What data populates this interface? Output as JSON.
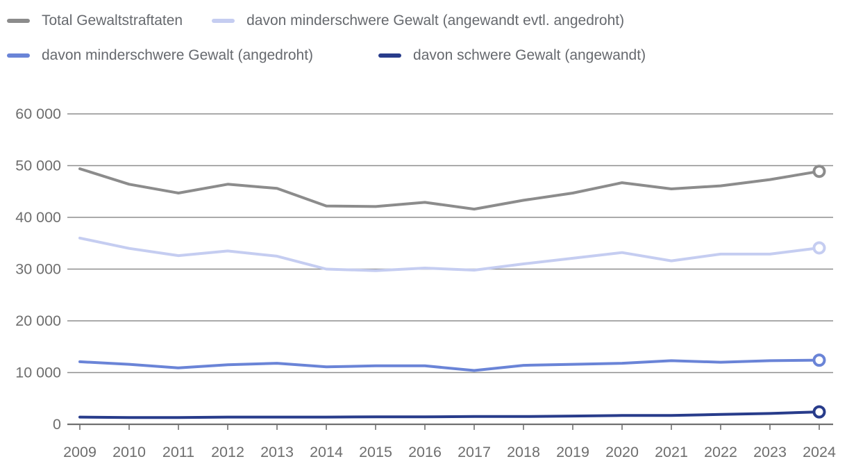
{
  "legend": {
    "items": [
      {
        "label": "Total Gewaltstraftaten",
        "color": "#8c8c8c"
      },
      {
        "label": "davon minderschwere Gewalt (angewandt evtl. angedroht)",
        "color": "#c5cdf1"
      },
      {
        "label": "davon minderschwere Gewalt (angedroht)",
        "color": "#6a84d7"
      },
      {
        "label": "davon schwere Gewalt (angewandt)",
        "color": "#283c8b"
      }
    ]
  },
  "y_axis": {
    "ticks": [
      {
        "value": 0,
        "label": "0"
      },
      {
        "value": 10000,
        "label": "10 000"
      },
      {
        "value": 20000,
        "label": "20 000"
      },
      {
        "value": 30000,
        "label": "30 000"
      },
      {
        "value": 40000,
        "label": "40 000"
      },
      {
        "value": 50000,
        "label": "50 000"
      },
      {
        "value": 60000,
        "label": "60 000"
      }
    ]
  },
  "x_axis": {
    "labels": [
      "2009",
      "2010",
      "2011",
      "2012",
      "2013",
      "2014",
      "2015",
      "2016",
      "2017",
      "2018",
      "2019",
      "2020",
      "2021",
      "2022",
      "2023",
      "2024"
    ]
  },
  "chart_data": {
    "type": "line",
    "title": "",
    "xlabel": "",
    "ylabel": "",
    "x": [
      2009,
      2010,
      2011,
      2012,
      2013,
      2014,
      2015,
      2016,
      2017,
      2018,
      2019,
      2020,
      2021,
      2022,
      2023,
      2024
    ],
    "ylim": [
      0,
      60000
    ],
    "grid": true,
    "legend_position": "top-left",
    "series": [
      {
        "name": "Total Gewaltstraftaten",
        "color": "#8c8c8c",
        "end_marker": true,
        "values": [
          49400,
          46400,
          44700,
          46400,
          45600,
          42200,
          42100,
          42900,
          41600,
          43300,
          44700,
          46700,
          45500,
          46100,
          47300,
          48900
        ]
      },
      {
        "name": "davon minderschwere Gewalt (angewandt evtl. angedroht)",
        "color": "#c5cdf1",
        "end_marker": true,
        "values": [
          36000,
          34000,
          32600,
          33500,
          32500,
          30000,
          29700,
          30200,
          29800,
          31000,
          32100,
          33200,
          31600,
          32900,
          32900,
          34100
        ]
      },
      {
        "name": "davon minderschwere Gewalt (angedroht)",
        "color": "#6a84d7",
        "end_marker": true,
        "values": [
          12100,
          11600,
          10900,
          11500,
          11800,
          11100,
          11300,
          11300,
          10400,
          11400,
          11600,
          11800,
          12300,
          12000,
          12300,
          12400
        ]
      },
      {
        "name": "davon schwere Gewalt (angewandt)",
        "color": "#283c8b",
        "end_marker": true,
        "values": [
          1400,
          1300,
          1300,
          1400,
          1400,
          1400,
          1450,
          1450,
          1500,
          1500,
          1600,
          1700,
          1700,
          1900,
          2100,
          2400
        ]
      }
    ]
  },
  "colors": {
    "gridline": "#8e8e8e",
    "axis_line": "#707070",
    "axis_text": "#6e6e6e",
    "legend_text": "#66696e",
    "background": "#ffffff"
  }
}
